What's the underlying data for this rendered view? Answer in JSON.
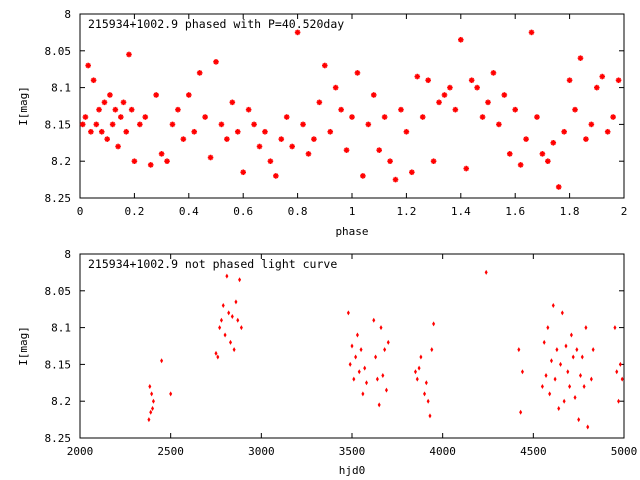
{
  "chart_data": [
    {
      "type": "scatter",
      "title": "215934+1002.9 phased with P=40.520day",
      "xlabel": "phase",
      "ylabel": "I[mag]",
      "xlim": [
        0,
        2
      ],
      "ylim": [
        8.25,
        8.0
      ],
      "y_inverted": true,
      "x_ticks": [
        "0",
        "0.2",
        "0.4",
        "0.6",
        "0.8",
        "1",
        "1.2",
        "1.4",
        "1.6",
        "1.8",
        "2"
      ],
      "y_ticks": [
        "8",
        "8.05",
        "8.1",
        "8.15",
        "8.2",
        "8.25"
      ],
      "marker_color": "#ff0000",
      "marker": "star",
      "series": [
        {
          "x": [
            0.01,
            0.02,
            0.03,
            0.04,
            0.05,
            0.06,
            0.07,
            0.08,
            0.09,
            0.1,
            0.11,
            0.12,
            0.13,
            0.14,
            0.15,
            0.16,
            0.17,
            0.18,
            0.19,
            0.2,
            0.22,
            0.24,
            0.26,
            0.28,
            0.3,
            0.32,
            0.34,
            0.36,
            0.38,
            0.4,
            0.42,
            0.44,
            0.46,
            0.48,
            0.5,
            0.52,
            0.54,
            0.56,
            0.58,
            0.6,
            0.62,
            0.64,
            0.66,
            0.68,
            0.7,
            0.72,
            0.74,
            0.76,
            0.78,
            0.8,
            0.82,
            0.84,
            0.86,
            0.88,
            0.9,
            0.92,
            0.94,
            0.96,
            0.98,
            1.0,
            1.02,
            1.04,
            1.06,
            1.08,
            1.1,
            1.12,
            1.14,
            1.16,
            1.18,
            1.2,
            1.22,
            1.24,
            1.26,
            1.28,
            1.3,
            1.32,
            1.34,
            1.36,
            1.38,
            1.4,
            1.42,
            1.44,
            1.46,
            1.48,
            1.5,
            1.52,
            1.54,
            1.56,
            1.58,
            1.6,
            1.62,
            1.64,
            1.66,
            1.68,
            1.7,
            1.72,
            1.74,
            1.76,
            1.78,
            1.8,
            1.82,
            1.84,
            1.86,
            1.88,
            1.9,
            1.92,
            1.94,
            1.96,
            1.98
          ],
          "y": [
            8.15,
            8.14,
            8.07,
            8.16,
            8.09,
            8.15,
            8.13,
            8.16,
            8.12,
            8.17,
            8.11,
            8.15,
            8.13,
            8.18,
            8.14,
            8.12,
            8.16,
            8.055,
            8.13,
            8.2,
            8.15,
            8.14,
            8.205,
            8.11,
            8.19,
            8.2,
            8.15,
            8.13,
            8.17,
            8.11,
            8.16,
            8.08,
            8.14,
            8.195,
            8.065,
            8.15,
            8.17,
            8.12,
            8.16,
            8.215,
            8.13,
            8.15,
            8.18,
            8.16,
            8.2,
            8.22,
            8.17,
            8.14,
            8.18,
            8.025,
            8.15,
            8.19,
            8.17,
            8.12,
            8.07,
            8.16,
            8.1,
            8.13,
            8.185,
            8.14,
            8.08,
            8.22,
            8.15,
            8.11,
            8.185,
            8.14,
            8.2,
            8.225,
            8.13,
            8.16,
            8.215,
            8.085,
            8.14,
            8.09,
            8.2,
            8.12,
            8.11,
            8.1,
            8.13,
            8.035,
            8.21,
            8.09,
            8.1,
            8.14,
            8.12,
            8.08,
            8.15,
            8.11,
            8.19,
            8.13,
            8.205,
            8.17,
            8.025,
            8.14,
            8.19,
            8.2,
            8.175,
            8.235,
            8.16,
            8.09,
            8.13,
            8.06,
            8.17,
            8.15,
            8.1,
            8.085,
            8.16,
            8.14,
            8.09
          ]
        }
      ]
    },
    {
      "type": "scatter",
      "title": "215934+1002.9 not phased light curve",
      "xlabel": "hjd0",
      "ylabel": "I[mag]",
      "xlim": [
        2000,
        5000
      ],
      "ylim": [
        8.25,
        8.0
      ],
      "y_inverted": true,
      "x_ticks": [
        "2000",
        "2500",
        "3000",
        "3500",
        "4000",
        "4500",
        "5000"
      ],
      "y_ticks": [
        "8",
        "8.05",
        "8.1",
        "8.15",
        "8.2",
        "8.25"
      ],
      "marker_color": "#ff0000",
      "marker": "diamond",
      "series": [
        {
          "x": [
            2380,
            2385,
            2390,
            2395,
            2400,
            2405,
            2450,
            2500,
            2750,
            2760,
            2770,
            2780,
            2790,
            2800,
            2810,
            2820,
            2830,
            2840,
            2850,
            2860,
            2870,
            2880,
            2890,
            3480,
            3490,
            3500,
            3510,
            3520,
            3530,
            3540,
            3550,
            3560,
            3570,
            3580,
            3620,
            3630,
            3640,
            3650,
            3660,
            3670,
            3680,
            3690,
            3700,
            3850,
            3860,
            3870,
            3880,
            3900,
            3910,
            3920,
            3930,
            3940,
            3950,
            4240,
            4420,
            4430,
            4440,
            4550,
            4560,
            4570,
            4580,
            4590,
            4600,
            4610,
            4620,
            4630,
            4640,
            4650,
            4660,
            4670,
            4680,
            4690,
            4700,
            4710,
            4720,
            4730,
            4740,
            4750,
            4760,
            4770,
            4780,
            4790,
            4800,
            4820,
            4830,
            4950,
            4960,
            4970,
            4980,
            4990
          ],
          "y": [
            8.225,
            8.18,
            8.215,
            8.19,
            8.21,
            8.2,
            8.145,
            8.19,
            8.135,
            8.14,
            8.1,
            8.09,
            8.07,
            8.11,
            8.03,
            8.08,
            8.12,
            8.085,
            8.13,
            8.065,
            8.09,
            8.035,
            8.1,
            8.08,
            8.15,
            8.125,
            8.17,
            8.14,
            8.11,
            8.16,
            8.13,
            8.19,
            8.155,
            8.175,
            8.09,
            8.14,
            8.17,
            8.205,
            8.1,
            8.165,
            8.13,
            8.185,
            8.12,
            8.16,
            8.17,
            8.155,
            8.14,
            8.19,
            8.175,
            8.2,
            8.22,
            8.13,
            8.095,
            8.025,
            8.13,
            8.215,
            8.16,
            8.18,
            8.12,
            8.165,
            8.1,
            8.19,
            8.145,
            8.07,
            8.17,
            8.13,
            8.21,
            8.15,
            8.08,
            8.2,
            8.125,
            8.16,
            8.18,
            8.11,
            8.14,
            8.195,
            8.13,
            8.225,
            8.165,
            8.14,
            8.18,
            8.1,
            8.235,
            8.17,
            8.13,
            8.1,
            8.16,
            8.2,
            8.15,
            8.17
          ]
        }
      ]
    }
  ]
}
